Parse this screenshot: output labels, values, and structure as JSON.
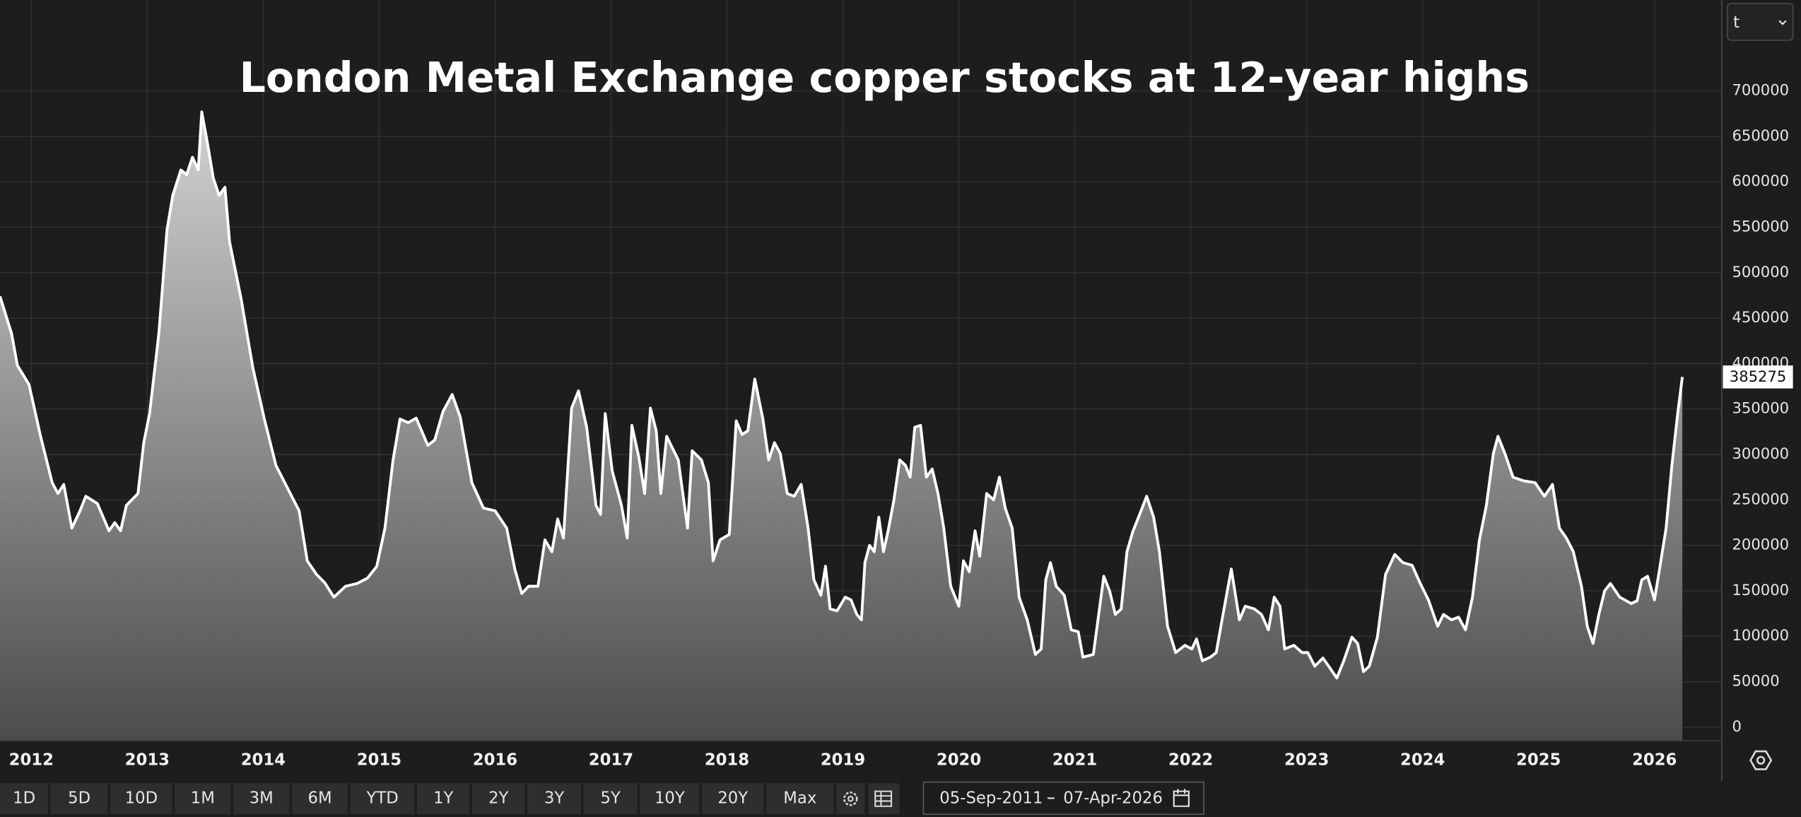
{
  "chart_data": {
    "type": "area",
    "title": "London Metal Exchange copper stocks at 12-year highs",
    "color": "#ffffff",
    "fill_top": "#d2d2d2",
    "fill_bottom": "#4c4c4c",
    "grid": true,
    "xlim": [
      2011.73,
      2026.58
    ],
    "xticks": [
      2012,
      2013,
      2014,
      2015,
      2016,
      2017,
      2018,
      2019,
      2020,
      2021,
      2022,
      2023,
      2024,
      2025,
      2026
    ],
    "ylim": [
      -15000,
      800000
    ],
    "yticks": [
      0,
      50000,
      100000,
      150000,
      200000,
      250000,
      300000,
      350000,
      400000,
      450000,
      500000,
      550000,
      600000,
      650000,
      700000
    ],
    "x": [
      2011.73,
      2011.83,
      2011.88,
      2011.98,
      2012.08,
      2012.18,
      2012.23,
      2012.28,
      2012.35,
      2012.42,
      2012.47,
      2012.57,
      2012.67,
      2012.72,
      2012.77,
      2012.82,
      2012.92,
      2012.97,
      2013.02,
      2013.1,
      2013.17,
      2013.22,
      2013.29,
      2013.34,
      2013.39,
      2013.44,
      2013.47,
      2013.52,
      2013.57,
      2013.62,
      2013.67,
      2013.71,
      2013.81,
      2013.91,
      2014.01,
      2014.11,
      2014.21,
      2014.31,
      2014.38,
      2014.46,
      2014.53,
      2014.61,
      2014.71,
      2014.81,
      2014.9,
      2014.98,
      2015.05,
      2015.12,
      2015.18,
      2015.25,
      2015.32,
      2015.42,
      2015.48,
      2015.55,
      2015.63,
      2015.7,
      2015.8,
      2015.9,
      2016.0,
      2016.1,
      2016.17,
      2016.23,
      2016.29,
      2016.37,
      2016.43,
      2016.49,
      2016.54,
      2016.59,
      2016.66,
      2016.72,
      2016.79,
      2016.87,
      2016.91,
      2016.95,
      2017.01,
      2017.09,
      2017.14,
      2017.18,
      2017.24,
      2017.29,
      2017.34,
      2017.39,
      2017.43,
      2017.48,
      2017.58,
      2017.66,
      2017.7,
      2017.78,
      2017.84,
      2017.88,
      2017.94,
      2018.02,
      2018.08,
      2018.13,
      2018.18,
      2018.24,
      2018.31,
      2018.36,
      2018.41,
      2018.46,
      2018.52,
      2018.58,
      2018.64,
      2018.7,
      2018.75,
      2018.81,
      2018.85,
      2018.89,
      2018.95,
      2019.02,
      2019.07,
      2019.12,
      2019.16,
      2019.19,
      2019.23,
      2019.27,
      2019.31,
      2019.35,
      2019.39,
      2019.44,
      2019.49,
      2019.54,
      2019.58,
      2019.62,
      2019.67,
      2019.72,
      2019.77,
      2019.82,
      2019.87,
      2019.93,
      2020.0,
      2020.04,
      2020.09,
      2020.14,
      2020.18,
      2020.24,
      2020.3,
      2020.35,
      2020.4,
      2020.46,
      2020.52,
      2020.59,
      2020.66,
      2020.71,
      2020.75,
      2020.79,
      2020.84,
      2020.91,
      2020.97,
      2021.03,
      2021.07,
      2021.16,
      2021.2,
      2021.25,
      2021.3,
      2021.35,
      2021.4,
      2021.45,
      2021.5,
      2021.55,
      2021.62,
      2021.68,
      2021.73,
      2021.8,
      2021.87,
      2021.95,
      2022.01,
      2022.05,
      2022.1,
      2022.17,
      2022.22,
      2022.27,
      2022.35,
      2022.42,
      2022.47,
      2022.55,
      2022.61,
      2022.67,
      2022.72,
      2022.77,
      2022.81,
      2022.89,
      2022.96,
      2023.01,
      2023.07,
      2023.14,
      2023.19,
      2023.26,
      2023.32,
      2023.39,
      2023.44,
      2023.49,
      2023.54,
      2023.61,
      2023.68,
      2023.76,
      2023.83,
      2023.91,
      2023.98,
      2024.05,
      2024.13,
      2024.18,
      2024.25,
      2024.31,
      2024.37,
      2024.43,
      2024.49,
      2024.55,
      2024.61,
      2024.65,
      2024.71,
      2024.78,
      2024.87,
      2024.97,
      2025.05,
      2025.12,
      2025.18,
      2025.24,
      2025.3,
      2025.37,
      2025.42,
      2025.47,
      2025.52,
      2025.57,
      2025.62,
      2025.7,
      2025.8,
      2025.85,
      2025.89,
      2025.94,
      2026.0,
      2026.04,
      2026.1,
      2026.15,
      2026.2,
      2026.24
    ],
    "values": [
      474000,
      433000,
      398000,
      377000,
      320000,
      269000,
      257000,
      267000,
      219000,
      238000,
      254000,
      246000,
      216000,
      225000,
      216000,
      244000,
      257000,
      313000,
      345000,
      433000,
      547000,
      585000,
      613000,
      608000,
      627000,
      613000,
      677000,
      642000,
      604000,
      585000,
      594000,
      534000,
      471000,
      396000,
      339000,
      288000,
      263000,
      238000,
      183000,
      168000,
      159000,
      143000,
      155000,
      158000,
      164000,
      177000,
      219000,
      294000,
      339000,
      335000,
      340000,
      310000,
      316000,
      347000,
      366000,
      341000,
      269000,
      241000,
      238000,
      219000,
      174000,
      147000,
      155000,
      155000,
      206000,
      193000,
      229000,
      208000,
      351000,
      370000,
      330000,
      244000,
      234000,
      345000,
      282000,
      244000,
      208000,
      332000,
      297000,
      257000,
      351000,
      326000,
      257000,
      320000,
      294000,
      219000,
      304000,
      294000,
      269000,
      183000,
      206000,
      212000,
      337000,
      322000,
      326000,
      383000,
      339000,
      294000,
      313000,
      301000,
      257000,
      254000,
      267000,
      219000,
      162000,
      145000,
      177000,
      130000,
      128000,
      143000,
      140000,
      124000,
      118000,
      181000,
      200000,
      193000,
      231000,
      193000,
      216000,
      250000,
      294000,
      288000,
      275000,
      330000,
      332000,
      275000,
      284000,
      257000,
      219000,
      155000,
      133000,
      183000,
      171000,
      216000,
      188000,
      257000,
      250000,
      275000,
      241000,
      219000,
      143000,
      118000,
      80000,
      86000,
      162000,
      181000,
      155000,
      145000,
      107000,
      105000,
      77000,
      80000,
      118000,
      166000,
      150000,
      124000,
      130000,
      193000,
      215000,
      231000,
      254000,
      231000,
      193000,
      111000,
      82000,
      90000,
      86000,
      97000,
      73000,
      77000,
      82000,
      118000,
      174000,
      118000,
      133000,
      130000,
      124000,
      107000,
      143000,
      133000,
      86000,
      90000,
      82000,
      82000,
      67000,
      76000,
      67000,
      54000,
      73000,
      99000,
      92000,
      61000,
      67000,
      99000,
      168000,
      190000,
      181000,
      178000,
      158000,
      140000,
      111000,
      124000,
      118000,
      121000,
      107000,
      143000,
      206000,
      244000,
      301000,
      320000,
      301000,
      275000,
      271000,
      269000,
      254000,
      267000,
      219000,
      208000,
      193000,
      155000,
      111000,
      92000,
      124000,
      150000,
      158000,
      143000,
      136000,
      139000,
      162000,
      166000,
      140000,
      171000,
      219000,
      288000,
      345000,
      385275
    ],
    "unit_select": "t",
    "range_buttons": [
      "1D",
      "5D",
      "10D",
      "1M",
      "3M",
      "6M",
      "YTD",
      "1Y",
      "2Y",
      "3Y",
      "5Y",
      "10Y",
      "20Y",
      "Max"
    ],
    "date_range": {
      "start": "05-Sep-2011",
      "end": "07-Apr-2026"
    }
  }
}
